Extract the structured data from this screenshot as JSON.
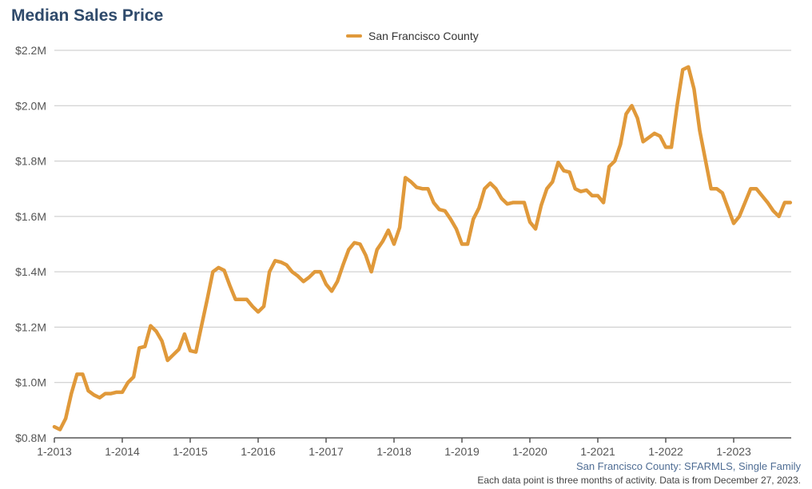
{
  "header": {
    "title": "Median Sales Price"
  },
  "footer": {
    "source": "San Francisco County: SFARMLS, Single Family",
    "note": "Each data point is three months of activity. Data is from December 27, 2023."
  },
  "colors": {
    "series": "#e0993a",
    "grid": "#c7c7c7",
    "axis": "#555555",
    "title": "#2f4a6b"
  },
  "chart_data": {
    "type": "line",
    "title": "Median Sales Price",
    "xlabel": "",
    "ylabel": "",
    "ylim": [
      800000,
      2200000
    ],
    "ytick_values": [
      800000,
      1000000,
      1200000,
      1400000,
      1600000,
      1800000,
      2000000,
      2200000
    ],
    "ytick_labels": [
      "$0.8M",
      "$1.0M",
      "$1.2M",
      "$1.4M",
      "$1.6M",
      "$1.8M",
      "$2.0M",
      "$2.2M"
    ],
    "xtick_labels": [
      "1-2013",
      "1-2014",
      "1-2015",
      "1-2016",
      "1-2017",
      "1-2018",
      "1-2019",
      "1-2020",
      "1-2021",
      "1-2022",
      "1-2023"
    ],
    "x_start": "2013-01",
    "grid": true,
    "legend_position": "top-center",
    "series": [
      {
        "name": "San Francisco County",
        "values": [
          840000,
          830000,
          870000,
          960000,
          1030000,
          1030000,
          970000,
          955000,
          945000,
          960000,
          960000,
          965000,
          965000,
          1000000,
          1020000,
          1125000,
          1130000,
          1205000,
          1185000,
          1150000,
          1080000,
          1100000,
          1120000,
          1175000,
          1115000,
          1110000,
          1205000,
          1300000,
          1400000,
          1415000,
          1405000,
          1350000,
          1300000,
          1300000,
          1300000,
          1275000,
          1255000,
          1275000,
          1400000,
          1440000,
          1435000,
          1425000,
          1400000,
          1385000,
          1365000,
          1380000,
          1400000,
          1400000,
          1355000,
          1330000,
          1365000,
          1425000,
          1480000,
          1505000,
          1500000,
          1460000,
          1400000,
          1480000,
          1510000,
          1550000,
          1500000,
          1560000,
          1740000,
          1725000,
          1705000,
          1700000,
          1700000,
          1650000,
          1625000,
          1620000,
          1590000,
          1555000,
          1500000,
          1500000,
          1590000,
          1630000,
          1700000,
          1720000,
          1700000,
          1665000,
          1645000,
          1650000,
          1650000,
          1650000,
          1580000,
          1555000,
          1640000,
          1700000,
          1725000,
          1795000,
          1765000,
          1760000,
          1700000,
          1690000,
          1695000,
          1675000,
          1675000,
          1650000,
          1780000,
          1800000,
          1860000,
          1970000,
          2000000,
          1955000,
          1870000,
          1885000,
          1900000,
          1890000,
          1850000,
          1850000,
          2000000,
          2130000,
          2140000,
          2060000,
          1910000,
          1805000,
          1700000,
          1700000,
          1685000,
          1630000,
          1575000,
          1600000,
          1650000,
          1700000,
          1700000,
          1675000,
          1650000,
          1620000,
          1600000,
          1650000,
          1650000
        ]
      }
    ]
  }
}
